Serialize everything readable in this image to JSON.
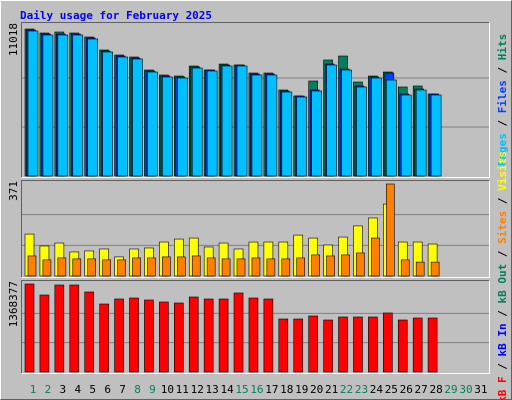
{
  "chart_data": {
    "type": "bar",
    "title": "Daily usage for February 2025",
    "categories": [
      "1",
      "2",
      "3",
      "4",
      "5",
      "6",
      "7",
      "8",
      "9",
      "10",
      "11",
      "12",
      "13",
      "14",
      "15",
      "16",
      "17",
      "18",
      "19",
      "20",
      "21",
      "22",
      "23",
      "24",
      "25",
      "26",
      "27",
      "28",
      "29",
      "30",
      "31"
    ],
    "weekend_categories": [
      0,
      1,
      7,
      8,
      14,
      15,
      21,
      22,
      28,
      29
    ],
    "weekend_color": "#00805c",
    "panels": [
      {
        "ylim": [
          0,
          11018
        ],
        "yticks": [
          11018
        ],
        "series": [
          {
            "name": "Hits",
            "color": "#00805c",
            "values": [
              11018,
              10718,
              10793,
              10718,
              10418,
              9444,
              9069,
              8919,
              7945,
              7570,
              7495,
              8245,
              7945,
              8394,
              8319,
              7720,
              7720,
              6446,
              5996,
              7120,
              8694,
              8994,
              7045,
              7495,
              7795,
              6671,
              6746,
              6146,
              null,
              null,
              null
            ]
          },
          {
            "name": "Files",
            "color": "#0040ff",
            "values": [
              10943,
              10643,
              10643,
              10643,
              10343,
              9369,
              8994,
              8844,
              7870,
              7495,
              7420,
              8170,
              7945,
              8320,
              8320,
              7645,
              7645,
              6371,
              5996,
              6446,
              8394,
              8020,
              6746,
              7420,
              7720,
              6146,
              6521,
              6146,
              null,
              null,
              null
            ]
          },
          {
            "name": "Pages",
            "color": "#00c0ff",
            "values": [
              10868,
              10568,
              10568,
              10568,
              10268,
              9294,
              8919,
              8769,
              7795,
              7420,
              7345,
              8095,
              7870,
              8245,
              8245,
              7570,
              7570,
              6296,
              5921,
              6371,
              8319,
              7945,
              6671,
              7345,
              7195,
              6071,
              6446,
              6071,
              null,
              null,
              null
            ]
          }
        ],
        "legend": [
          "Pages",
          "Files",
          "Hits"
        ]
      },
      {
        "ylim": [
          0,
          371
        ],
        "yticks": [
          371
        ],
        "series": [
          {
            "name": "Visits",
            "color": "#ffff00",
            "values": [
              169,
              121,
              133,
              97,
              101,
              109,
              77,
              109,
              113,
              137,
              149,
              153,
              117,
              133,
              109,
              137,
              137,
              137,
              165,
              153,
              125,
              157,
              202,
              234,
              290,
              137,
              137,
              129,
              null,
              null,
              null
            ]
          },
          {
            "name": "Sites",
            "color": "#ff8000",
            "values": [
              81,
              65,
              73,
              69,
              69,
              65,
              65,
              73,
              73,
              77,
              77,
              81,
              73,
              69,
              69,
              73,
              69,
              69,
              73,
              85,
              81,
              85,
              93,
              153,
              371,
              65,
              56,
              56,
              null,
              null,
              null
            ]
          }
        ]
      },
      {
        "ylim": [
          0,
          1368377
        ],
        "yticks": [
          1368377
        ],
        "series": [
          {
            "name": "kB F",
            "color": "#ff0000",
            "values": [
              1368377,
              1197300,
              1352800,
              1352800,
              1244000,
              1057400,
              1135200,
              1150700,
              1119600,
              1088500,
              1073000,
              1166300,
              1135200,
              1135200,
              1228500,
              1150700,
              1135200,
              824200,
              824200,
              870800,
              808600,
              855300,
              855300,
              855300,
              917500,
              808600,
              839700,
              839700,
              null,
              null,
              null
            ]
          }
        ]
      }
    ],
    "lower_legend": [
      {
        "name": "kB F",
        "color": "#ff0000"
      },
      {
        "name": "kB In",
        "color": "#0000ff"
      },
      {
        "name": "kB Out",
        "color": "#00805c"
      },
      {
        "name": "Sites",
        "color": "#ff8000"
      },
      {
        "name": "Visits",
        "color": "#ffff00"
      }
    ],
    "upper_legend_colors": [
      "#00c0ff",
      "#0040ff",
      "#00805c"
    ]
  }
}
